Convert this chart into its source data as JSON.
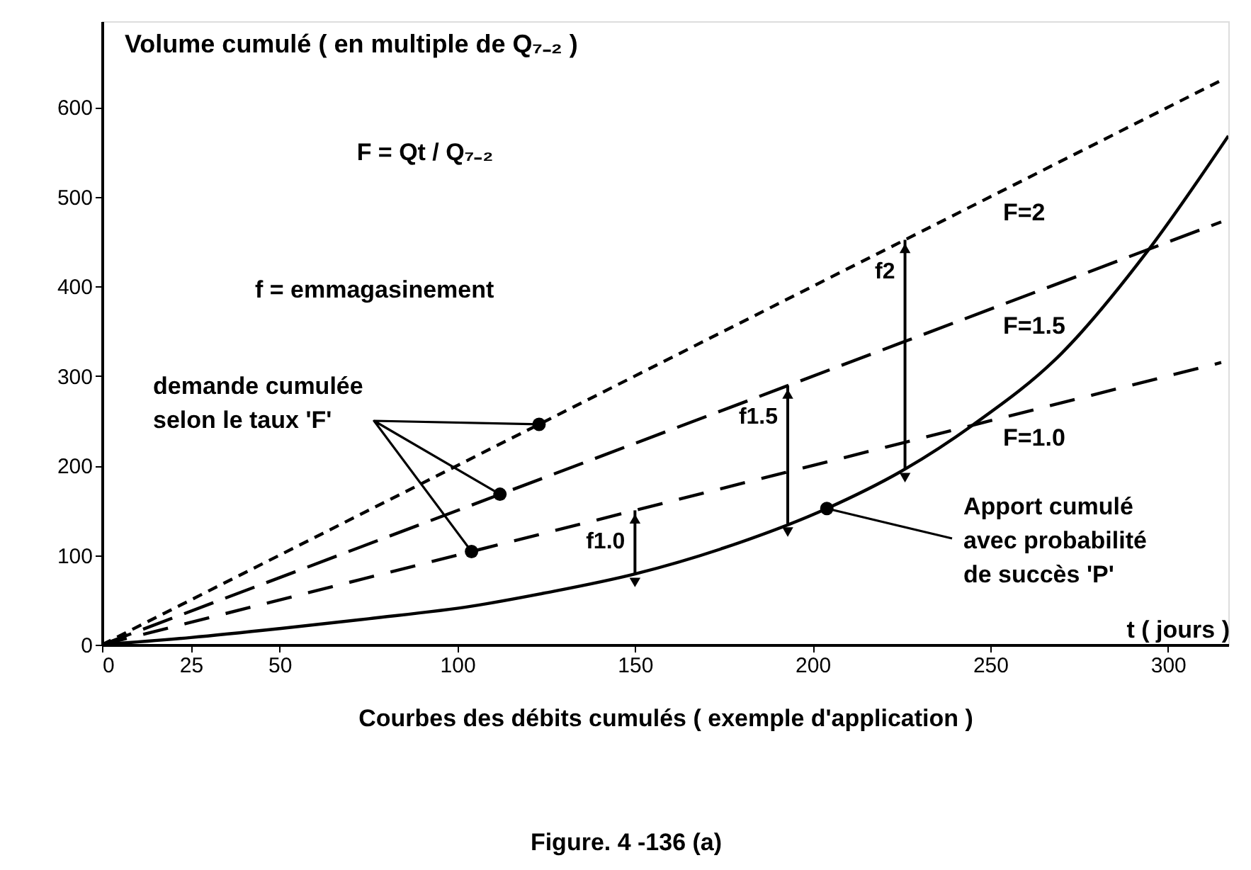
{
  "chart_data": {
    "type": "line",
    "ylabel": "Volume cumulé ( en multiple de Q₇₋₂ )",
    "xlabel": "Courbes des débits cumulés ( exemple  d'application )",
    "xlim": [
      0,
      317
    ],
    "ylim": [
      0,
      696
    ],
    "xticks": [
      0,
      25,
      50,
      100,
      150,
      200,
      250,
      300
    ],
    "yticks": [
      0,
      100,
      200,
      300,
      400,
      500,
      600
    ],
    "grid": false,
    "series": [
      {
        "name": "F=1.0",
        "color": "#000000",
        "line_style": "dashed",
        "x": [
          0,
          315
        ],
        "values": [
          0,
          315
        ]
      },
      {
        "name": "F=1.5",
        "color": "#000000",
        "line_style": "dashed",
        "x": [
          0,
          315
        ],
        "values": [
          0,
          472
        ]
      },
      {
        "name": "F=2",
        "color": "#000000",
        "line_style": "dotted",
        "x": [
          0,
          315
        ],
        "values": [
          0,
          630
        ]
      },
      {
        "color": "#000000",
        "line_style": "solid",
        "x": [
          0,
          25,
          50,
          75,
          104,
          125,
          150,
          175,
          204,
          226,
          245,
          270,
          294,
          317
        ],
        "values": [
          0,
          8,
          18,
          29,
          43,
          58,
          79,
          108,
          152,
          196,
          245,
          325,
          438,
          568
        ]
      },
      {
        "type": "scatter",
        "color": "#000000",
        "marker": "circle",
        "x": [
          104,
          112,
          123,
          204
        ],
        "values": [
          104,
          168,
          246,
          152
        ]
      }
    ],
    "annotations": [
      {
        "text": "f1.0",
        "x": 150,
        "y": 150
      },
      {
        "text": "f1.5",
        "x": 193,
        "y": 289.5
      },
      {
        "text": "f2",
        "x": 226,
        "y": 452
      },
      "F = Qt / Q₇₋₂",
      "f = emmagasinement",
      {
        "text": "demande cumulée\nselon le taux 'F'",
        "x": 112,
        "y": 168
      },
      {
        "text": "Apport cumulé\navec probabilité\nde succès 'P'",
        "x": 204,
        "y": 152
      },
      "t ( jours )",
      "Figure. 4 -136 (a)"
    ]
  }
}
